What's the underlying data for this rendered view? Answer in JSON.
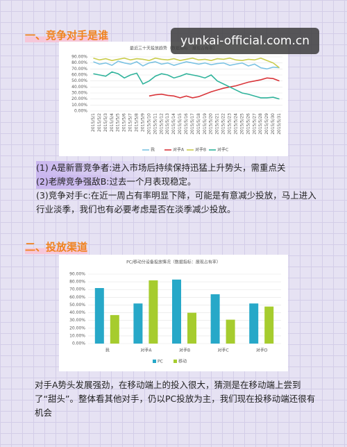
{
  "watermark": "yunkai-official.com.cn",
  "sections": [
    {
      "heading": "一、竞争对手是谁"
    },
    {
      "heading": "二、投放渠道"
    }
  ],
  "paragraphs": [
    "(1) A是新晋竞争者:进入市场后持续保持迅猛上升势头，需重点关注。",
    "(2)老牌竞争强敌B:过去一个月表现稳定。",
    "(3)竞争对手c:在近一周占有率明显下降，可能是有意减少投放，马上进入行业淡季，我们也有必要考虑是否在淡季减少投放。",
    "对手A势头发展强劲，在移动端上的投入很大，猜测是在移动端上尝到了“甜头”。整体看其他对手，仍以PC投放为主，我们现在投移动端还很有机会"
  ],
  "chart_data": [
    {
      "type": "line",
      "title": "最近三十天投放趋势（数据指标：展现占有率）",
      "categories": [
        "2015/5/1",
        "2015/5/2",
        "2015/5/3",
        "2015/5/4",
        "2015/5/5",
        "2015/5/6",
        "2015/5/7",
        "2015/5/8",
        "2015/5/9",
        "2015/5/10",
        "2015/5/11",
        "2015/5/12",
        "2015/5/13",
        "2015/5/14",
        "2015/5/15",
        "2015/5/16",
        "2015/5/17",
        "2015/5/18",
        "2015/5/19",
        "2015/5/20",
        "2015/5/21",
        "2015/5/22",
        "2015/5/23",
        "2015/5/24",
        "2015/5/25",
        "2015/5/26",
        "2015/5/27",
        "2015/5/28",
        "2015/5/29",
        "2015/5/30",
        "2015/5/31"
      ],
      "series": [
        {
          "name": "我",
          "color": "#7cc3e3",
          "values": [
            82,
            78,
            80,
            76,
            83,
            80,
            78,
            82,
            75,
            80,
            82,
            78,
            80,
            76,
            79,
            82,
            80,
            78,
            80,
            77,
            79,
            80,
            76,
            78,
            80,
            75,
            78,
            72,
            70,
            73,
            72
          ]
        },
        {
          "name": "对手A",
          "color": "#d9353a",
          "values": [
            null,
            null,
            null,
            null,
            null,
            null,
            null,
            null,
            null,
            25,
            27,
            28,
            26,
            25,
            22,
            25,
            22,
            24,
            28,
            32,
            35,
            38,
            40,
            42,
            45,
            48,
            50,
            52,
            55,
            54,
            50
          ]
        },
        {
          "name": "对手B",
          "color": "#c9cc4a",
          "values": [
            88,
            85,
            87,
            84,
            86,
            88,
            85,
            87,
            86,
            84,
            88,
            86,
            85,
            87,
            84,
            86,
            88,
            85,
            86,
            84,
            87,
            86,
            88,
            85,
            84,
            86,
            85,
            88,
            84,
            80,
            72
          ]
        },
        {
          "name": "对手C",
          "color": "#2fb39b",
          "values": [
            62,
            60,
            58,
            65,
            62,
            55,
            60,
            63,
            45,
            50,
            58,
            62,
            60,
            55,
            58,
            62,
            60,
            58,
            55,
            60,
            50,
            45,
            40,
            35,
            30,
            28,
            25,
            22,
            22,
            23,
            20
          ]
        }
      ],
      "ylim": [
        0,
        90
      ],
      "yticks": [
        {
          "value": 0,
          "label": "0.00%"
        },
        {
          "value": 10,
          "label": "10.00%"
        },
        {
          "value": 20,
          "label": "20.00%"
        },
        {
          "value": 30,
          "label": "30.00%"
        },
        {
          "value": 40,
          "label": "40.00%"
        },
        {
          "value": 50,
          "label": "50.00%"
        },
        {
          "value": 60,
          "label": "60.00%"
        },
        {
          "value": 70,
          "label": "70.00%"
        },
        {
          "value": 80,
          "label": "80.00%"
        },
        {
          "value": 90,
          "label": "90.00%"
        }
      ],
      "grid": true
    },
    {
      "type": "bar",
      "title": "PC/移动分设备投放情况（数据指标：展现占有率）",
      "categories": [
        "我",
        "对手A",
        "对手B",
        "对手C",
        "对手D"
      ],
      "series": [
        {
          "name": "PC",
          "color": "#27a8c8",
          "values": [
            72,
            52,
            83,
            64,
            52
          ]
        },
        {
          "name": "移动",
          "color": "#a6cc2e",
          "values": [
            37,
            82,
            40,
            31,
            48
          ]
        }
      ],
      "ylim": [
        0,
        90
      ],
      "yticks": [
        {
          "value": 0,
          "label": "0.00%"
        },
        {
          "value": 10,
          "label": "10.00%"
        },
        {
          "value": 20,
          "label": "20.00%"
        },
        {
          "value": 30,
          "label": "30.00%"
        },
        {
          "value": 40,
          "label": "40.00%"
        },
        {
          "value": 50,
          "label": "50.00%"
        },
        {
          "value": 60,
          "label": "60.00%"
        },
        {
          "value": 70,
          "label": "70.00%"
        },
        {
          "value": 80,
          "label": "80.00%"
        },
        {
          "value": 90,
          "label": "90.00%"
        }
      ],
      "grid": true
    }
  ]
}
